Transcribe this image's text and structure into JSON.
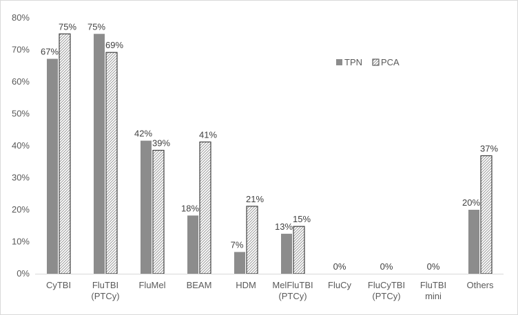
{
  "chart_data": {
    "type": "bar",
    "title": "",
    "xlabel": "",
    "ylabel": "",
    "ylim": [
      0,
      80
    ],
    "ytick_step": 10,
    "ytick_format": "percent",
    "grid": false,
    "legend_position": "center-right",
    "categories": [
      [
        "CyTBI"
      ],
      [
        "FluTBI",
        "(PTCy)"
      ],
      [
        "FluMel"
      ],
      [
        "BEAM"
      ],
      [
        "HDM"
      ],
      [
        "MelFluTBI",
        "(PTCy)"
      ],
      [
        "FluCy"
      ],
      [
        "FluCyTBI",
        "(PTCy)"
      ],
      [
        "FluTBI",
        "mini"
      ],
      [
        "Others"
      ]
    ],
    "series": [
      {
        "name": "TPN",
        "color": "#8c8c8c",
        "pattern": "solid",
        "values": [
          67.2,
          75.0,
          41.6,
          18.2,
          6.8,
          12.5,
          0,
          0,
          0,
          20.0
        ],
        "labels": [
          "67%",
          "75%",
          "42%",
          "18%",
          "7%",
          "13%",
          "0%",
          "0%",
          "0%",
          "20%"
        ]
      },
      {
        "name": "PCA",
        "color": "#404040",
        "pattern": "hatched",
        "values": [
          75.0,
          69.2,
          38.6,
          41.2,
          21.1,
          14.8,
          0,
          0,
          0,
          36.9
        ],
        "labels": [
          "75%",
          "69%",
          "39%",
          "41%",
          "21%",
          "15%",
          "",
          "",
          "",
          "37%"
        ]
      }
    ]
  }
}
